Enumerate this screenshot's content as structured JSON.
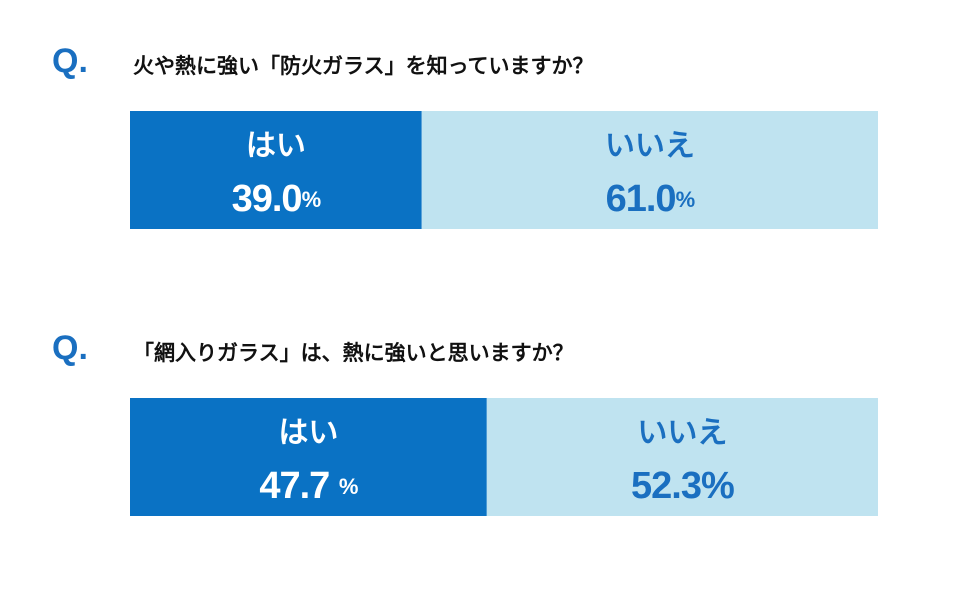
{
  "chart_data": [
    {
      "type": "bar",
      "prefix": "Q.",
      "title": "火や熱に強い「防火ガラス」を知っていますか？",
      "xlim": [
        0,
        100
      ],
      "series": [
        {
          "name": "はい",
          "color": "#0a72c4",
          "text_color": "#ffffff",
          "values": [
            39.0
          ],
          "value_labels": [
            "39.0%"
          ]
        },
        {
          "name": "いいえ",
          "color": "#bfe3f0",
          "text_color": "#1a6fc0",
          "values": [
            61.0
          ],
          "value_labels": [
            "61.0%"
          ]
        }
      ]
    },
    {
      "type": "bar",
      "prefix": "Q.",
      "title": "「網入りガラス」は、熱に強いと思いますか？",
      "xlim": [
        0,
        100
      ],
      "series": [
        {
          "name": "はい",
          "color": "#0a72c4",
          "text_color": "#ffffff",
          "values": [
            47.7
          ],
          "value_labels": [
            "47.7 %"
          ]
        },
        {
          "name": "いいえ",
          "color": "#bfe3f0",
          "text_color": "#1a6fc0",
          "values": [
            52.3
          ],
          "value_labels": [
            "52.3%"
          ]
        }
      ]
    }
  ]
}
